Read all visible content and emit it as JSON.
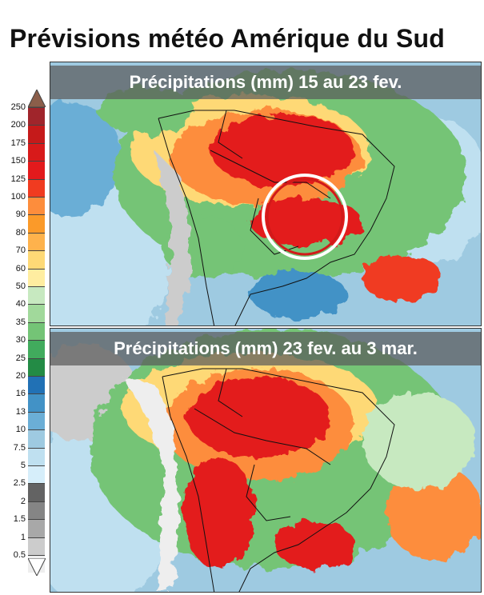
{
  "title": "Prévisions météo Amérique du Sud",
  "legend": {
    "labels": [
      "250",
      "200",
      "175",
      "150",
      "125",
      "100",
      "90",
      "80",
      "70",
      "60",
      "50",
      "40",
      "35",
      "30",
      "25",
      "20",
      "16",
      "13",
      "10",
      "7.5",
      "5",
      "2.5",
      "2",
      "1.5",
      "1",
      "0.5"
    ],
    "colors": {
      "cap_top": "#8b5e4a",
      "bands": [
        "#a0252b",
        "#c51a1a",
        "#d81a1a",
        "#e31a1c",
        "#f03b20",
        "#fd8d3c",
        "#fb9a29",
        "#feb24c",
        "#fed976",
        "#ffeda0",
        "#c7e9c0",
        "#a1d99b",
        "#74c476",
        "#41ab5d",
        "#238b45",
        "#2171b5",
        "#4292c6",
        "#6baed6",
        "#9ecae1",
        "#bfe0f0",
        "#d6eefa",
        "#636363",
        "#858585",
        "#a8a8a8",
        "#cccccc",
        "#eeeeee"
      ]
    }
  },
  "panels": [
    {
      "caption": "Précipitations (mm) 15 au 23 fev."
    },
    {
      "caption": "Précipitations (mm) 23 fev. au 3 mar."
    }
  ]
}
